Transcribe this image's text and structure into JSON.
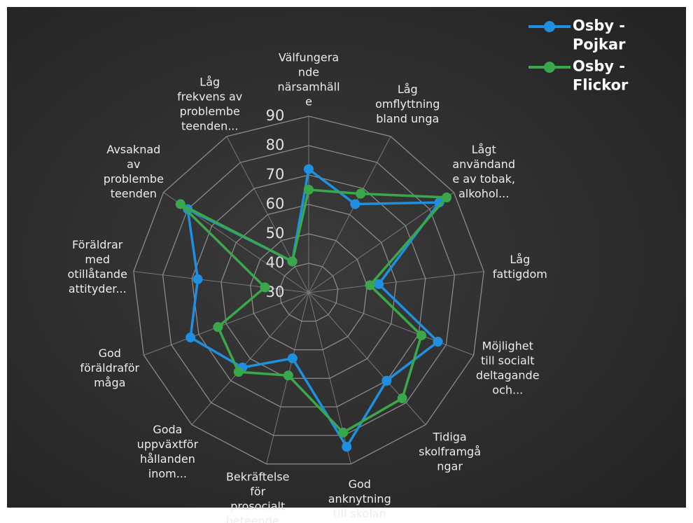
{
  "chart_data": {
    "type": "radar",
    "categories": [
      "Välfungera\nnde\nnärsamhäll\ne",
      "Låg\nomflyttning\nbland unga",
      "Lågt\nanvändand\ne av tobak,\nalkohol...",
      "Låg\nfattigdom",
      "Möjlighet\ntill socialt\ndeltagande\noch...",
      "Tidiga\nskolframgå\nngar",
      "God\nanknytning\ntill skolan",
      "Bekräftelse\nför\nprosocialt\nbeteende...",
      "Goda\nuppväxtför\nhållanden\ninom...",
      "God\nföräldraför\nmåga",
      "Föräldrar\nmed\notillåtande\nattityder...",
      "Avsaknad\nav\nproblembe\nteenden",
      "Låg\nfrekvens av\nproblembe\nteenden..."
    ],
    "series": [
      {
        "name": "Osby -\nPojkar",
        "color": "#1f8fe0",
        "values": [
          72,
          64,
          84,
          54,
          77,
          70,
          84,
          53,
          64,
          73,
          68,
          80,
          42
        ]
      },
      {
        "name": "Osby -\nFlickor",
        "color": "#3aa84a",
        "values": [
          65,
          68,
          87,
          51,
          71,
          78,
          79,
          59,
          66,
          63,
          45,
          83,
          42
        ]
      }
    ],
    "ylim": [
      30,
      90
    ],
    "yticks": [
      30,
      40,
      50,
      60,
      70,
      80,
      90
    ],
    "grid": true,
    "legend": "top-right"
  }
}
